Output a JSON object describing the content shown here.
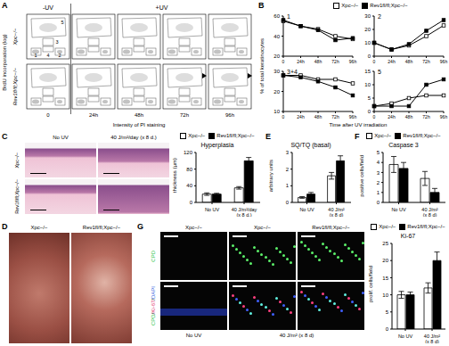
{
  "panels": {
    "A": {
      "label": "A",
      "conditions": [
        "-UV",
        "+UV"
      ],
      "rows": [
        "Xpc−/−",
        "Rev1fl/fl;Xpc−/−"
      ],
      "y_label": "BrdU incorporation (log)",
      "x_label": "Intensity of PI staining",
      "timepoints": [
        "0",
        "24h",
        "48h",
        "72h",
        "96h"
      ],
      "gates": [
        "1",
        "2",
        "3",
        "4",
        "5"
      ]
    },
    "B": {
      "label": "B",
      "y_label": "% of total keratinocytes",
      "x_label": "Time after UV irradiation"
    },
    "C": {
      "label": "C",
      "columns": [
        "No UV",
        "40 J/m²/day (x 8 d.)"
      ],
      "rows": [
        "Xpc−/−",
        "Rev1fl/fl;Xpc−/−"
      ]
    },
    "D": {
      "label": "D",
      "columns": [
        "Xpc−/−",
        "Rev1fl/fl;Xpc−/−"
      ]
    },
    "E": {
      "label": "E"
    },
    "F": {
      "label": "F"
    },
    "G": {
      "label": "G",
      "columns": [
        "Xpc−/−",
        "Xpc−/−",
        "Rev1fl/fl;Xpc−/−"
      ],
      "rows": [
        "CPD",
        "CPD/Ki-67/DAPI"
      ],
      "conditions": [
        "No UV",
        "40 J/m² (x 8 d)"
      ]
    }
  },
  "chart_data": [
    {
      "type": "line",
      "title": "1",
      "legend": "top",
      "categories": [
        "0",
        "24h",
        "48h",
        "72h",
        "96h"
      ],
      "ylim": [
        20,
        60
      ],
      "yticks": [
        20,
        40,
        60
      ],
      "series": [
        {
          "name": "Xpc−/−",
          "color": "#000000",
          "marker": "open_square",
          "values": [
            55,
            50,
            47,
            40,
            37
          ]
        },
        {
          "name": "Rev1fl/fl;Xpc−/−",
          "color": "#000000",
          "marker": "filled_square",
          "values": [
            56,
            50,
            46,
            36,
            38
          ]
        }
      ]
    },
    {
      "type": "line",
      "title": "2",
      "categories": [
        "0",
        "24h",
        "48h",
        "72h",
        "96h"
      ],
      "ylim": [
        0,
        30
      ],
      "yticks": [
        0,
        10,
        20,
        30
      ],
      "series": [
        {
          "name": "Xpc−/−",
          "color": "#000000",
          "marker": "open_square",
          "values": [
            10,
            5,
            8,
            15,
            23
          ]
        },
        {
          "name": "Rev1fl/fl;Xpc−/−",
          "color": "#000000",
          "marker": "filled_square",
          "values": [
            10,
            5,
            9,
            19,
            27
          ]
        }
      ]
    },
    {
      "type": "line",
      "title": "3+4",
      "categories": [
        "0",
        "24h",
        "48h",
        "72h",
        "96h"
      ],
      "ylim": [
        10,
        30
      ],
      "yticks": [
        10,
        20,
        30
      ],
      "series": [
        {
          "name": "Xpc−/−",
          "color": "#000000",
          "marker": "open_square",
          "values": [
            28,
            28,
            26,
            26,
            24
          ]
        },
        {
          "name": "Rev1fl/fl;Xpc−/−",
          "color": "#000000",
          "marker": "filled_square",
          "values": [
            28,
            27,
            25,
            22,
            18
          ]
        }
      ]
    },
    {
      "type": "line",
      "title": "5",
      "categories": [
        "0",
        "24h",
        "48h",
        "72h",
        "96h"
      ],
      "ylim": [
        0,
        15
      ],
      "yticks": [
        0,
        5,
        10,
        15
      ],
      "series": [
        {
          "name": "Xpc−/−",
          "color": "#000000",
          "marker": "open_square",
          "values": [
            2,
            3,
            5,
            6,
            6
          ]
        },
        {
          "name": "Rev1fl/fl;Xpc−/−",
          "color": "#000000",
          "marker": "filled_square",
          "values": [
            2,
            2,
            2,
            10,
            12
          ]
        }
      ]
    },
    {
      "type": "bar",
      "title": "Hyperplasia",
      "y_label": "thickness (µm)",
      "legend": "top",
      "categories": [
        "No UV",
        "40 J/m²/day (x 8 d.)"
      ],
      "ylim": [
        0,
        120
      ],
      "yticks": [
        0,
        40,
        80,
        120
      ],
      "series": [
        {
          "name": "Xpc−/−",
          "color": "#ffffff",
          "values": [
            20,
            35
          ],
          "errors": [
            3,
            3
          ]
        },
        {
          "name": "Rev1fl/fl;Xpc−/−",
          "color": "#000000",
          "values": [
            20,
            100
          ],
          "errors": [
            2,
            8
          ]
        }
      ]
    },
    {
      "type": "bar",
      "title": "SQ/TQ (basal)",
      "y_label": "arbitrary units",
      "categories": [
        "No UV",
        "40 J/m² (x 8 d)"
      ],
      "ylim": [
        0,
        3
      ],
      "yticks": [
        0,
        1,
        2,
        3
      ],
      "series": [
        {
          "name": "Xpc−/−",
          "color": "#ffffff",
          "values": [
            0.3,
            1.6
          ],
          "errors": [
            0.05,
            0.2
          ]
        },
        {
          "name": "Rev1fl/fl;Xpc−/−",
          "color": "#000000",
          "values": [
            0.5,
            2.5
          ],
          "errors": [
            0.1,
            0.3
          ]
        }
      ]
    },
    {
      "type": "bar",
      "title": "Caspase 3",
      "y_label": "positive cells/field",
      "legend": "top",
      "categories": [
        "No UV",
        "40 J/m² (x 8 d)"
      ],
      "ylim": [
        0,
        5
      ],
      "yticks": [
        0,
        1,
        2,
        3,
        4,
        5
      ],
      "series": [
        {
          "name": "Xpc−/−",
          "color": "#ffffff",
          "values": [
            3.8,
            2.4
          ],
          "errors": [
            0.8,
            0.7
          ]
        },
        {
          "name": "Rev1fl/fl;Xpc−/−",
          "color": "#000000",
          "values": [
            3.4,
            1.0
          ],
          "errors": [
            0.6,
            0.4
          ]
        }
      ]
    },
    {
      "type": "bar",
      "title": "Ki-67",
      "y_label": "prolif. cells/field",
      "legend": "top",
      "categories": [
        "No UV",
        "40 J/m² (x 8 d)"
      ],
      "ylim": [
        0,
        25
      ],
      "yticks": [
        0,
        5,
        10,
        15,
        20,
        25
      ],
      "series": [
        {
          "name": "Xpc−/−",
          "color": "#ffffff",
          "values": [
            10,
            12
          ],
          "errors": [
            1,
            1.5
          ]
        },
        {
          "name": "Rev1fl/fl;Xpc−/−",
          "color": "#000000",
          "values": [
            10,
            20
          ],
          "errors": [
            0.8,
            2.5
          ]
        }
      ]
    }
  ]
}
